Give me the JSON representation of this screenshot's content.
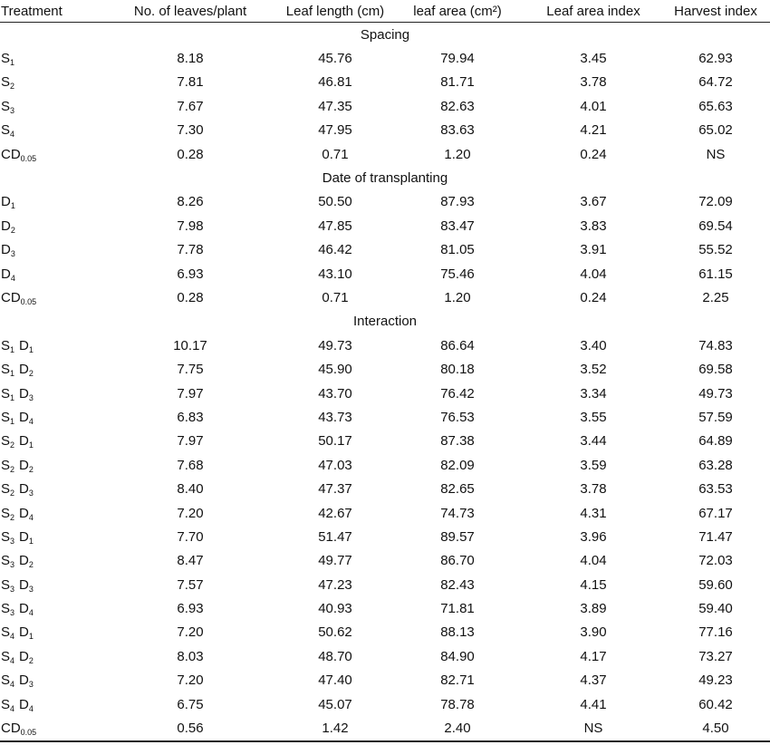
{
  "header": [
    "Treatment",
    "No. of leaves/plant",
    "Leaf length (cm)",
    "leaf area (cm²)",
    "Leaf area index",
    "Harvest index"
  ],
  "sections": [
    {
      "title": "Spacing",
      "rows": [
        {
          "treatment": [
            {
              "base": "S",
              "sub": "1"
            }
          ],
          "values": [
            "8.18",
            "45.76",
            "79.94",
            "3.45",
            "62.93"
          ]
        },
        {
          "treatment": [
            {
              "base": "S",
              "sub": "2"
            }
          ],
          "values": [
            "7.81",
            "46.81",
            "81.71",
            "3.78",
            "64.72"
          ]
        },
        {
          "treatment": [
            {
              "base": "S",
              "sub": "3"
            }
          ],
          "values": [
            "7.67",
            "47.35",
            "82.63",
            "4.01",
            "65.63"
          ]
        },
        {
          "treatment": [
            {
              "base": "S",
              "sub": "4"
            }
          ],
          "values": [
            "7.30",
            "47.95",
            "83.63",
            "4.21",
            "65.02"
          ]
        },
        {
          "treatment": [
            {
              "base": "CD",
              "sub": "0.05"
            }
          ],
          "values": [
            "0.28",
            "0.71",
            "1.20",
            "0.24",
            "NS"
          ]
        }
      ]
    },
    {
      "title": "Date of transplanting",
      "rows": [
        {
          "treatment": [
            {
              "base": "D",
              "sub": "1"
            }
          ],
          "values": [
            "8.26",
            "50.50",
            "87.93",
            "3.67",
            "72.09"
          ]
        },
        {
          "treatment": [
            {
              "base": "D",
              "sub": "2"
            }
          ],
          "values": [
            "7.98",
            "47.85",
            "83.47",
            "3.83",
            "69.54"
          ]
        },
        {
          "treatment": [
            {
              "base": "D",
              "sub": "3"
            }
          ],
          "values": [
            "7.78",
            "46.42",
            "81.05",
            "3.91",
            "55.52"
          ]
        },
        {
          "treatment": [
            {
              "base": "D",
              "sub": "4"
            }
          ],
          "values": [
            "6.93",
            "43.10",
            "75.46",
            "4.04",
            "61.15"
          ]
        },
        {
          "treatment": [
            {
              "base": "CD",
              "sub": "0.05"
            }
          ],
          "values": [
            "0.28",
            "0.71",
            "1.20",
            "0.24",
            "2.25"
          ]
        }
      ]
    },
    {
      "title": "Interaction",
      "rows": [
        {
          "treatment": [
            {
              "base": "S",
              "sub": "1"
            },
            {
              "base": "D",
              "sub": "1"
            }
          ],
          "values": [
            "10.17",
            "49.73",
            "86.64",
            "3.40",
            "74.83"
          ]
        },
        {
          "treatment": [
            {
              "base": "S",
              "sub": "1"
            },
            {
              "base": "D",
              "sub": "2"
            }
          ],
          "values": [
            "7.75",
            "45.90",
            "80.18",
            "3.52",
            "69.58"
          ]
        },
        {
          "treatment": [
            {
              "base": "S",
              "sub": "1"
            },
            {
              "base": "D",
              "sub": "3"
            }
          ],
          "values": [
            "7.97",
            "43.70",
            "76.42",
            "3.34",
            "49.73"
          ]
        },
        {
          "treatment": [
            {
              "base": "S",
              "sub": "1"
            },
            {
              "base": "D",
              "sub": "4"
            }
          ],
          "values": [
            "6.83",
            "43.73",
            "76.53",
            "3.55",
            "57.59"
          ]
        },
        {
          "treatment": [
            {
              "base": "S",
              "sub": "2"
            },
            {
              "base": "D",
              "sub": "1"
            }
          ],
          "values": [
            "7.97",
            "50.17",
            "87.38",
            "3.44",
            "64.89"
          ]
        },
        {
          "treatment": [
            {
              "base": "S",
              "sub": "2"
            },
            {
              "base": "D",
              "sub": "2"
            }
          ],
          "values": [
            "7.68",
            "47.03",
            "82.09",
            "3.59",
            "63.28"
          ]
        },
        {
          "treatment": [
            {
              "base": "S",
              "sub": "2"
            },
            {
              "base": "D",
              "sub": "3"
            }
          ],
          "values": [
            "8.40",
            "47.37",
            "82.65",
            "3.78",
            "63.53"
          ]
        },
        {
          "treatment": [
            {
              "base": "S",
              "sub": "2"
            },
            {
              "base": "D",
              "sub": "4"
            }
          ],
          "values": [
            "7.20",
            "42.67",
            "74.73",
            "4.31",
            "67.17"
          ]
        },
        {
          "treatment": [
            {
              "base": "S",
              "sub": "3"
            },
            {
              "base": "D",
              "sub": "1"
            }
          ],
          "values": [
            "7.70",
            "51.47",
            "89.57",
            "3.96",
            "71.47"
          ]
        },
        {
          "treatment": [
            {
              "base": "S",
              "sub": "3"
            },
            {
              "base": "D",
              "sub": "2"
            }
          ],
          "values": [
            "8.47",
            "49.77",
            "86.70",
            "4.04",
            "72.03"
          ]
        },
        {
          "treatment": [
            {
              "base": "S",
              "sub": "3"
            },
            {
              "base": "D",
              "sub": "3"
            }
          ],
          "values": [
            "7.57",
            "47.23",
            "82.43",
            "4.15",
            "59.60"
          ]
        },
        {
          "treatment": [
            {
              "base": "S",
              "sub": "3"
            },
            {
              "base": "D",
              "sub": "4"
            }
          ],
          "values": [
            "6.93",
            "40.93",
            "71.81",
            "3.89",
            "59.40"
          ]
        },
        {
          "treatment": [
            {
              "base": "S",
              "sub": "4"
            },
            {
              "base": "D",
              "sub": "1"
            }
          ],
          "values": [
            "7.20",
            "50.62",
            "88.13",
            "3.90",
            "77.16"
          ]
        },
        {
          "treatment": [
            {
              "base": "S",
              "sub": "4"
            },
            {
              "base": "D",
              "sub": "2"
            }
          ],
          "values": [
            "8.03",
            "48.70",
            "84.90",
            "4.17",
            "73.27"
          ]
        },
        {
          "treatment": [
            {
              "base": "S",
              "sub": "4"
            },
            {
              "base": "D",
              "sub": "3"
            }
          ],
          "values": [
            "7.20",
            "47.40",
            "82.71",
            "4.37",
            "49.23"
          ]
        },
        {
          "treatment": [
            {
              "base": "S",
              "sub": "4"
            },
            {
              "base": "D",
              "sub": "4"
            }
          ],
          "values": [
            "6.75",
            "45.07",
            "78.78",
            "4.41",
            "60.42"
          ]
        },
        {
          "treatment": [
            {
              "base": "CD",
              "sub": "0.05"
            }
          ],
          "values": [
            "0.56",
            "1.42",
            "2.40",
            "NS",
            "4.50"
          ]
        }
      ]
    }
  ]
}
